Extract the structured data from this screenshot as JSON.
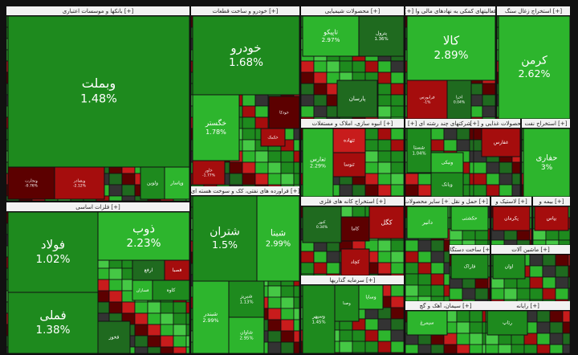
{
  "sectors": [
    {
      "title": "بانکها و موسسات اعتباری [+]",
      "tiles": [
        {
          "name": "وبملت",
          "change": "1.48%"
        },
        {
          "name": "وتجارت",
          "change": "-0.76%"
        },
        {
          "name": "وبصادر",
          "change": "-2.12%"
        },
        {
          "name": "ولوین"
        },
        {
          "name": "وپاسار"
        }
      ]
    },
    {
      "title": "خودرو و ساخت قطعات [+]",
      "tiles": [
        {
          "name": "خودرو",
          "change": "1.68%"
        },
        {
          "name": "خگستر",
          "change": "1.78%"
        },
        {
          "name": "خاور",
          "change": "-1.77%"
        },
        {
          "name": "خکمک"
        },
        {
          "name": "خودکا"
        }
      ]
    },
    {
      "title": "محصولات شیمیایی [+]",
      "tiles": [
        {
          "name": "تاپیکو",
          "change": "2.97%"
        },
        {
          "name": "پترول",
          "change": "1.36%"
        },
        {
          "name": "پارسان"
        }
      ]
    },
    {
      "title": "[+] فعالیتهای کمکی به نهادهای مالی وا",
      "tiles": [
        {
          "name": "کالا",
          "change": "2.89%"
        },
        {
          "name": "فرابورس",
          "change": "-1%"
        },
        {
          "name": "اخزا",
          "change": "0.04%"
        }
      ]
    },
    {
      "title": "استخراج زغال سنگ [+]",
      "tiles": [
        {
          "name": "کرمن",
          "change": "2.62%"
        }
      ]
    },
    {
      "title": "انبوه سازی، املاک و مستغلات [+]",
      "tiles": [
        {
          "name": "ثفارس",
          "change": "2.29%"
        },
        {
          "name": "ثتهاده"
        },
        {
          "name": "ثنوسا"
        }
      ]
    },
    {
      "title": "[+] شرکتهای چند رشته ای",
      "tiles": [
        {
          "name": "شستا",
          "change": "1.04%"
        },
        {
          "name": "ونیکی"
        },
        {
          "name": "وبانک"
        }
      ]
    },
    {
      "title": "[+] محصولات غذایی و",
      "tiles": [
        {
          "name": "غفارس"
        }
      ]
    },
    {
      "title": "استخراج نفت [+]",
      "tiles": [
        {
          "name": "حفاری",
          "change": "3%"
        }
      ]
    },
    {
      "title": "فلزات اساسی [+]",
      "tiles": [
        {
          "name": "فولاد",
          "change": "1.02%"
        },
        {
          "name": "فملی",
          "change": "1.38%"
        },
        {
          "name": "ذوب",
          "change": "2.23%"
        },
        {
          "name": "ارفع"
        },
        {
          "name": "فصبا"
        },
        {
          "name": "کاوه"
        },
        {
          "name": "فسازان"
        },
        {
          "name": "فخوز"
        }
      ]
    },
    {
      "title": "فراورده های نفتی، کک و سوخت هسته ای [+]",
      "tiles": [
        {
          "name": "شتران",
          "change": "1.5%"
        },
        {
          "name": "شبنا",
          "change": "2.99%"
        },
        {
          "name": "شبندر",
          "change": "2.99%"
        },
        {
          "name": "شبریز",
          "change": "1.13%"
        },
        {
          "name": "شاوان",
          "change": "2.95%"
        }
      ]
    },
    {
      "title": "استخراج کانه های فلزی [+]",
      "tiles": [
        {
          "name": "کنور",
          "change": "0.34%"
        },
        {
          "name": "کگل"
        },
        {
          "name": "کاما"
        },
        {
          "name": "کچاد"
        }
      ]
    },
    {
      "title": "سرمایه گذاریها [+]",
      "tiles": [
        {
          "name": "وسپهر",
          "change": "1.45%"
        },
        {
          "name": "وصنا"
        },
        {
          "name": "وسایا"
        }
      ]
    },
    {
      "title": "سایر محصولات [+]",
      "tiles": [
        {
          "name": "دانیر"
        }
      ]
    },
    {
      "title": "حمل و نقل [+]",
      "tiles": [
        {
          "name": "حکشتی"
        }
      ]
    },
    {
      "title": "لاستیک و [+]",
      "tiles": [
        {
          "name": "پکرمان"
        }
      ]
    },
    {
      "title": "بیمه و [+]",
      "tiles": [
        {
          "name": "بپاس"
        }
      ]
    },
    {
      "title": "ساخت دستگاه [+]",
      "tiles": [
        {
          "name": "فاراک"
        }
      ]
    },
    {
      "title": "ماشین آلات [+]",
      "tiles": [
        {
          "name": "اوان"
        }
      ]
    },
    {
      "title": "سیمان، آهک و گچ [+]",
      "tiles": [
        {
          "name": "سیمرغ"
        }
      ]
    },
    {
      "title": "رایانه [+]",
      "tiles": [
        {
          "name": "رتاپ"
        }
      ]
    }
  ]
}
